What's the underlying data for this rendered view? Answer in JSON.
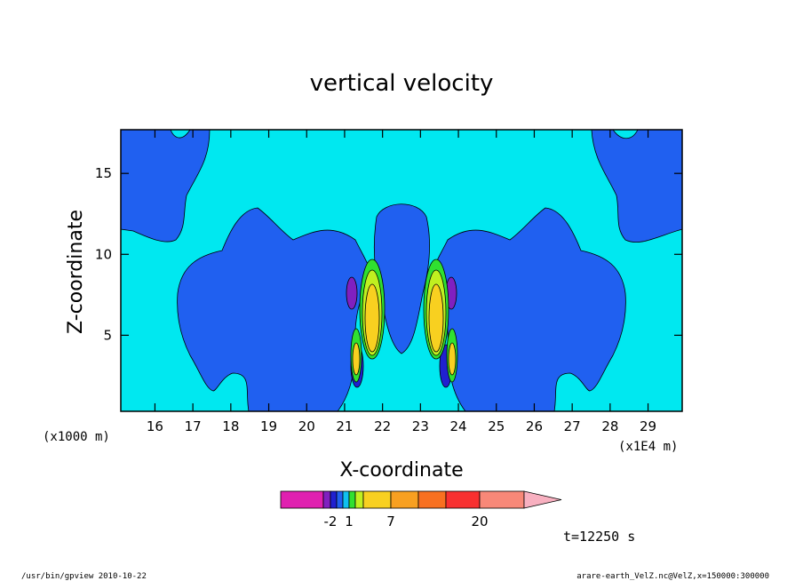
{
  "chart_data": {
    "type": "heatmap",
    "title": "vertical velocity",
    "xlabel": "X-coordinate",
    "ylabel": "Z-coordinate",
    "x_unit_label": "(x1E4 m)",
    "y_unit_label": "(x1000 m)",
    "xlim": [
      15.1,
      29.9
    ],
    "ylim": [
      0.3,
      17.7
    ],
    "x_ticks": [
      16,
      17,
      18,
      19,
      20,
      21,
      22,
      23,
      24,
      25,
      26,
      27,
      28,
      29
    ],
    "y_ticks": [
      5,
      10,
      15
    ],
    "colorbar": {
      "colors": [
        "#e020b0",
        "#8020c0",
        "#2020d0",
        "#2060f0",
        "#10c0f0",
        "#30e030",
        "#c0f020",
        "#f8d020",
        "#f8a020",
        "#f87020",
        "#f83030",
        "#f88878",
        "#f8b0c0"
      ],
      "tick_labels": [
        "-2",
        "1",
        "7",
        "20"
      ]
    },
    "features": [
      {
        "name": "updraft-core-left",
        "x": 21.8,
        "z": 6.5,
        "level": "high"
      },
      {
        "name": "updraft-core-right",
        "x": 23.4,
        "z": 6.5,
        "level": "high"
      },
      {
        "name": "updraft-lower-left",
        "x": 21.3,
        "z": 3.5,
        "level": "moderate"
      },
      {
        "name": "updraft-lower-right",
        "x": 23.9,
        "z": 3.5,
        "level": "moderate"
      },
      {
        "name": "downdraft-left",
        "x": 20.9,
        "z": 7.5,
        "level": "negative"
      },
      {
        "name": "downdraft-right",
        "x": 24.4,
        "z": 7.5,
        "level": "negative"
      }
    ]
  },
  "annotations": {
    "time": "t=12250 s",
    "footer_left": "/usr/bin/gpview   2010-10-22",
    "footer_right": "arare-earth_VelZ.nc@VelZ,x=150000:300000"
  }
}
